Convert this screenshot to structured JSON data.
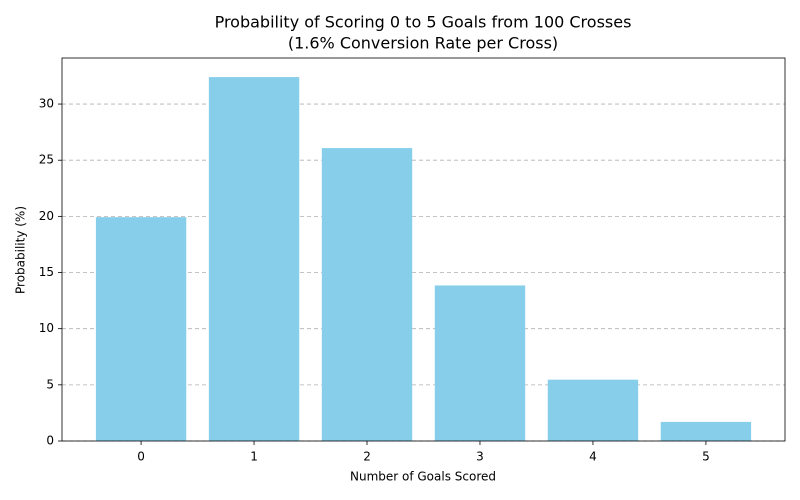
{
  "chart_data": {
    "type": "bar",
    "title": "Probability of Scoring 0 to 5 Goals from 100 Crosses",
    "subtitle": "(1.6% Conversion Rate per Cross)",
    "x_label": "Number of Goals Scored",
    "y_label": "Probability (%)",
    "categories": [
      "0",
      "1",
      "2",
      "3",
      "4",
      "5"
    ],
    "values": [
      19.93,
      32.4,
      26.08,
      13.85,
      5.46,
      1.7
    ],
    "color": "#87ceeb",
    "ylim": [
      0,
      34.1
    ],
    "yticks": [
      0,
      5,
      10,
      15,
      20,
      25,
      30
    ],
    "grid": true
  }
}
